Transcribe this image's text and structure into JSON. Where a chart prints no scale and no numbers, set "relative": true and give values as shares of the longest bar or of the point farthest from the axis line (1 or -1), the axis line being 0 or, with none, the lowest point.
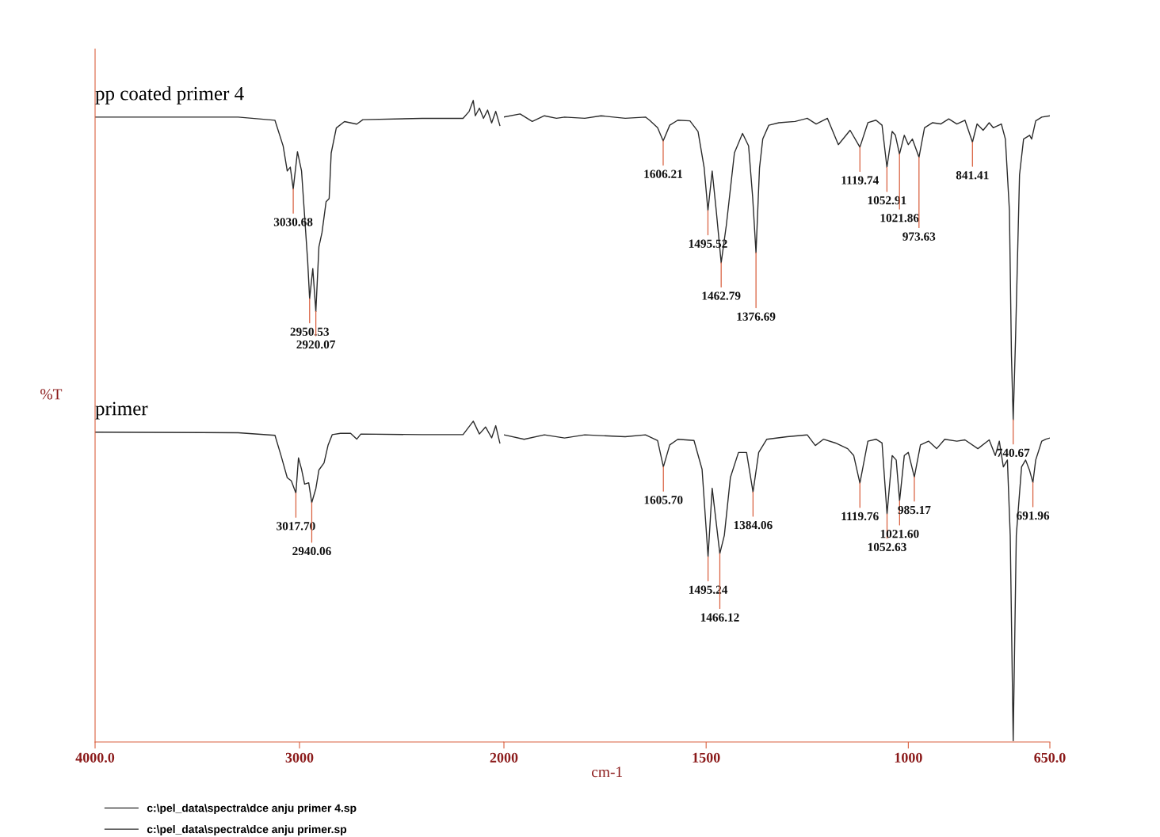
{
  "chart_data": [
    {
      "type": "line",
      "relative": true,
      "ylabel": "%T",
      "xlim": [
        4000,
        2000
      ],
      "xticks": [
        {
          "value": 4000,
          "label": "4000.0"
        },
        3000
      ],
      "legend": "bottom left",
      "grid": false,
      "marker": "none",
      "line_style": "solid",
      "series": [
        {
          "name": "c:\\pel_data\\spectra\\dce anju primer 4.sp",
          "color": "#2b2b2b",
          "x": [
            4000,
            3300,
            3120,
            3080,
            3060,
            3045,
            3030.68,
            3010,
            2990,
            2960,
            2950.53,
            2935,
            2920.07,
            2905,
            2890,
            2870,
            2855,
            2845,
            2820,
            2780,
            2720,
            2690,
            2400,
            2200,
            2170,
            2150,
            2140,
            2120,
            2100,
            2080,
            2060,
            2040,
            2020
          ],
          "values": [
            0.974,
            0.974,
            0.969,
            0.929,
            0.89,
            0.896,
            0.862,
            0.92,
            0.89,
            0.749,
            0.691,
            0.738,
            0.671,
            0.772,
            0.794,
            0.842,
            0.847,
            0.918,
            0.957,
            0.967,
            0.963,
            0.97,
            0.972,
            0.972,
            0.983,
            1.0,
            0.976,
            0.988,
            0.972,
            0.985,
            0.965,
            0.983,
            0.961
          ]
        },
        {
          "name": "c:\\pel_data\\spectra\\dce anju primer.sp",
          "color": "#2b2b2b",
          "x": [
            4000,
            3300,
            3120,
            3090,
            3060,
            3040,
            3017.7,
            3005,
            2990,
            2975,
            2955,
            2940.06,
            2920,
            2905,
            2880,
            2860,
            2840,
            2800,
            2750,
            2720,
            2700,
            2400,
            2200,
            2150,
            2120,
            2090,
            2060,
            2040,
            2020
          ],
          "values": [
            0.483,
            0.482,
            0.478,
            0.446,
            0.412,
            0.407,
            0.388,
            0.443,
            0.425,
            0.402,
            0.404,
            0.373,
            0.395,
            0.424,
            0.435,
            0.463,
            0.479,
            0.481,
            0.481,
            0.472,
            0.48,
            0.479,
            0.479,
            0.5,
            0.48,
            0.491,
            0.474,
            0.493,
            0.466
          ]
        }
      ],
      "annotations": [
        "pp coated primer 4",
        "primer",
        {
          "text": "3030.68",
          "x": 3030.68,
          "y": 0.862
        },
        {
          "text": "2950.53",
          "x": 2950.53,
          "y": 0.691
        },
        {
          "text": "2920.07",
          "x": 2920.07,
          "y": 0.671
        },
        {
          "text": "3017.70",
          "x": 3017.7,
          "y": 0.388
        },
        {
          "text": "2940.06",
          "x": 2940.06,
          "y": 0.373
        }
      ]
    },
    {
      "type": "line",
      "relative": true,
      "xlabel": "cm-1",
      "xlim": [
        2000,
        650
      ],
      "xticks": [
        2000,
        1500,
        1000,
        {
          "value": 650,
          "label": "650.0"
        }
      ],
      "grid": false,
      "marker": "none",
      "line_style": "solid",
      "series": [
        {
          "color": "#2b2b2b",
          "x": [
            2000,
            1960,
            1930,
            1900,
            1870,
            1850,
            1800,
            1760,
            1700,
            1650,
            1640,
            1620,
            1606.21,
            1590,
            1570,
            1540,
            1520,
            1505,
            1495.52,
            1485,
            1475,
            1462.79,
            1450,
            1430,
            1410,
            1395,
            1385,
            1376.69,
            1368,
            1360,
            1345,
            1320,
            1280,
            1250,
            1228,
            1200,
            1173,
            1144,
            1119.74,
            1100,
            1080,
            1065,
            1052.91,
            1040,
            1032,
            1021.86,
            1010,
            1000,
            990,
            973.63,
            960,
            940,
            920,
            900,
            880,
            860,
            841.41,
            830,
            815,
            800,
            790,
            770,
            760,
            750,
            745,
            740.67,
            735,
            725,
            715,
            700,
            695,
            685,
            670,
            650
          ],
          "values": [
            0.995,
            1.0,
            0.988,
            0.997,
            0.993,
            0.995,
            0.993,
            0.997,
            0.993,
            0.995,
            0.99,
            0.978,
            0.957,
            0.982,
            0.99,
            0.989,
            0.972,
            0.915,
            0.846,
            0.909,
            0.846,
            0.763,
            0.823,
            0.938,
            0.969,
            0.949,
            0.868,
            0.779,
            0.914,
            0.96,
            0.982,
            0.986,
            0.988,
            0.993,
            0.984,
            0.993,
            0.951,
            0.974,
            0.947,
            0.986,
            0.99,
            0.982,
            0.915,
            0.972,
            0.966,
            0.936,
            0.966,
            0.951,
            0.96,
            0.931,
            0.978,
            0.986,
            0.984,
            0.992,
            0.984,
            0.99,
            0.955,
            0.984,
            0.974,
            0.986,
            0.978,
            0.984,
            0.96,
            0.846,
            0.616,
            0.513,
            0.639,
            0.903,
            0.96,
            0.966,
            0.96,
            0.989,
            0.995,
            0.997
          ]
        },
        {
          "color": "#2b2b2b",
          "x": [
            2000,
            1950,
            1900,
            1850,
            1800,
            1700,
            1650,
            1620,
            1605.7,
            1590,
            1570,
            1530,
            1510,
            1495.24,
            1485,
            1466.12,
            1455,
            1440,
            1420,
            1400,
            1384.06,
            1370,
            1350,
            1300,
            1250,
            1230,
            1210,
            1180,
            1150,
            1135,
            1119.76,
            1100,
            1080,
            1065,
            1052.63,
            1040,
            1030,
            1021.6,
            1010,
            1000,
            985.17,
            970,
            950,
            930,
            910,
            880,
            860,
            828,
            800,
            785,
            775,
            765,
            755,
            748,
            740.67,
            733,
            720,
            710,
            700,
            691.96,
            685,
            670,
            660,
            650
          ],
          "values": [
            0.489,
            0.482,
            0.489,
            0.484,
            0.489,
            0.486,
            0.489,
            0.48,
            0.438,
            0.473,
            0.482,
            0.48,
            0.434,
            0.295,
            0.404,
            0.3,
            0.329,
            0.421,
            0.461,
            0.461,
            0.398,
            0.461,
            0.482,
            0.486,
            0.489,
            0.472,
            0.482,
            0.476,
            0.467,
            0.456,
            0.412,
            0.479,
            0.482,
            0.476,
            0.363,
            0.456,
            0.449,
            0.384,
            0.456,
            0.461,
            0.422,
            0.473,
            0.479,
            0.467,
            0.482,
            0.479,
            0.481,
            0.467,
            0.481,
            0.456,
            0.479,
            0.438,
            0.449,
            0.329,
            0.002,
            0.329,
            0.438,
            0.449,
            0.432,
            0.413,
            0.449,
            0.479,
            0.482,
            0.484
          ]
        }
      ],
      "annotations": [
        {
          "text": "1606.21",
          "x": 1606.21,
          "y": 0.957
        },
        {
          "text": "1495.52",
          "x": 1495.52,
          "y": 0.846
        },
        {
          "text": "1462.79",
          "x": 1462.79,
          "y": 0.763
        },
        {
          "text": "1376.69",
          "x": 1376.69,
          "y": 0.779
        },
        {
          "text": "1119.74",
          "x": 1119.74,
          "y": 0.947
        },
        {
          "text": "1052.91",
          "x": 1052.91,
          "y": 0.915
        },
        {
          "text": "1021.86",
          "x": 1021.86,
          "y": 0.936
        },
        {
          "text": "973.63",
          "x": 973.63,
          "y": 0.931
        },
        {
          "text": "841.41",
          "x": 841.41,
          "y": 0.955
        },
        {
          "text": "740.67",
          "x": 740.67,
          "y": 0.513
        },
        {
          "text": "1605.70",
          "x": 1605.7,
          "y": 0.438
        },
        {
          "text": "1495.24",
          "x": 1495.24,
          "y": 0.295
        },
        {
          "text": "1466.12",
          "x": 1466.12,
          "y": 0.3
        },
        {
          "text": "1384.06",
          "x": 1384.06,
          "y": 0.398
        },
        {
          "text": "1119.76",
          "x": 1119.76,
          "y": 0.412
        },
        {
          "text": "1052.63",
          "x": 1052.63,
          "y": 0.363
        },
        {
          "text": "1021.60",
          "x": 1021.6,
          "y": 0.384
        },
        {
          "text": "985.17",
          "x": 985.17,
          "y": 0.422
        },
        {
          "text": "691.96",
          "x": 691.96,
          "y": 0.413
        }
      ]
    }
  ]
}
